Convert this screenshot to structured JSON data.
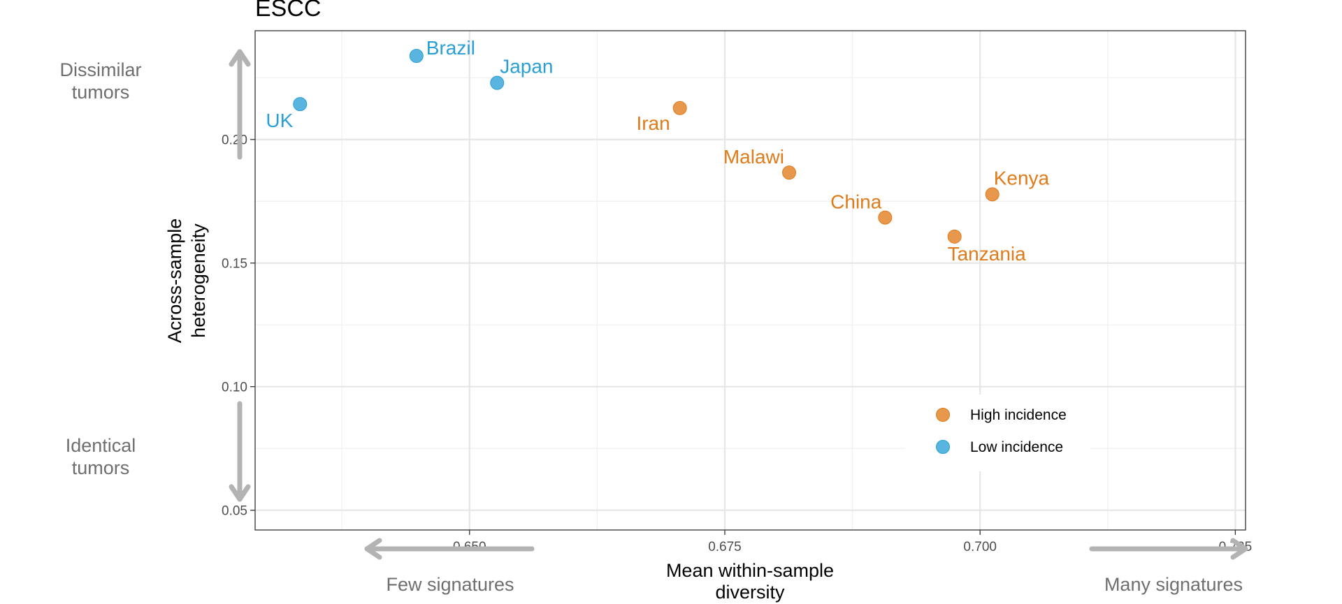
{
  "chart_data": {
    "type": "scatter",
    "title": "ESCC",
    "xlabel": [
      "Mean within-sample",
      "diversity"
    ],
    "ylabel": [
      "Across-sample",
      "heterogeneity"
    ],
    "xlim": [
      0.629,
      0.726
    ],
    "ylim": [
      0.042,
      0.244
    ],
    "x_ticks": [
      0.65,
      0.675,
      0.7,
      0.725
    ],
    "x_tick_labels": [
      "0.650",
      "0.675",
      "0.700",
      "0.725"
    ],
    "y_ticks": [
      0.05,
      0.1,
      0.15,
      0.2
    ],
    "y_tick_labels": [
      "0.05",
      "0.10",
      "0.15",
      "0.20"
    ],
    "grid": true,
    "legend_position": "bottom-right",
    "series": [
      {
        "name": "High incidence",
        "color": "#E07B1A",
        "points": [
          {
            "label": "Iran",
            "x": 0.6706,
            "y": 0.2127
          },
          {
            "label": "Malawi",
            "x": 0.6813,
            "y": 0.1866
          },
          {
            "label": "China",
            "x": 0.6907,
            "y": 0.1684
          },
          {
            "label": "Tanzania",
            "x": 0.6975,
            "y": 0.1607
          },
          {
            "label": "Kenya",
            "x": 0.7012,
            "y": 0.1778
          }
        ]
      },
      {
        "name": "Low incidence",
        "color": "#2A9FD6",
        "points": [
          {
            "label": "UK",
            "x": 0.6334,
            "y": 0.2143
          },
          {
            "label": "Brazil",
            "x": 0.6448,
            "y": 0.2338
          },
          {
            "label": "Japan",
            "x": 0.6527,
            "y": 0.2229
          }
        ]
      }
    ],
    "annotations": {
      "y_top": [
        "Dissimilar",
        "tumors"
      ],
      "y_bottom": [
        "Identical",
        "tumors"
      ],
      "x_left": "Few signatures",
      "x_right": "Many signatures"
    }
  }
}
